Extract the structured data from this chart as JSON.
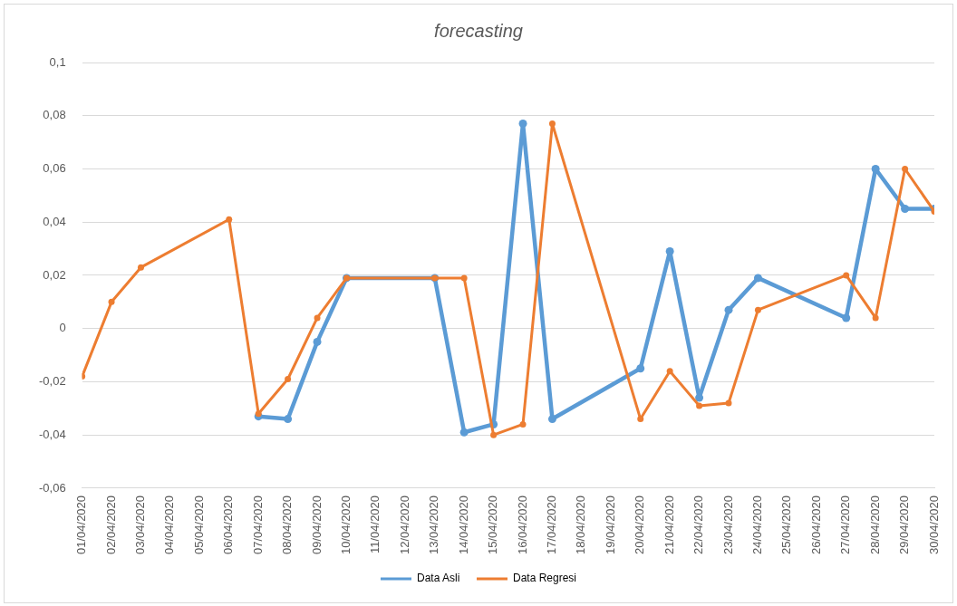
{
  "chart_data": {
    "type": "line",
    "title": "forecasting",
    "xlim": [
      "2020-04-01",
      "2020-04-30"
    ],
    "xticks": [
      {
        "value": "2020-04-01",
        "label": "01/04/2020"
      },
      {
        "value": "2020-04-02",
        "label": "02/04/2020"
      },
      {
        "value": "2020-04-03",
        "label": "03/04/2020"
      },
      {
        "value": "2020-04-04",
        "label": "04/04/2020"
      },
      {
        "value": "2020-04-05",
        "label": "05/04/2020"
      },
      {
        "value": "2020-04-06",
        "label": "06/04/2020"
      },
      {
        "value": "2020-04-07",
        "label": "07/04/2020"
      },
      {
        "value": "2020-04-08",
        "label": "08/04/2020"
      },
      {
        "value": "2020-04-09",
        "label": "09/04/2020"
      },
      {
        "value": "2020-04-10",
        "label": "10/04/2020"
      },
      {
        "value": "2020-04-11",
        "label": "11/04/2020"
      },
      {
        "value": "2020-04-12",
        "label": "12/04/2020"
      },
      {
        "value": "2020-04-13",
        "label": "13/04/2020"
      },
      {
        "value": "2020-04-14",
        "label": "14/04/2020"
      },
      {
        "value": "2020-04-15",
        "label": "15/04/2020"
      },
      {
        "value": "2020-04-16",
        "label": "16/04/2020"
      },
      {
        "value": "2020-04-17",
        "label": "17/04/2020"
      },
      {
        "value": "2020-04-18",
        "label": "18/04/2020"
      },
      {
        "value": "2020-04-19",
        "label": "19/04/2020"
      },
      {
        "value": "2020-04-20",
        "label": "20/04/2020"
      },
      {
        "value": "2020-04-21",
        "label": "21/04/2020"
      },
      {
        "value": "2020-04-22",
        "label": "22/04/2020"
      },
      {
        "value": "2020-04-23",
        "label": "23/04/2020"
      },
      {
        "value": "2020-04-24",
        "label": "24/04/2020"
      },
      {
        "value": "2020-04-25",
        "label": "25/04/2020"
      },
      {
        "value": "2020-04-26",
        "label": "26/04/2020"
      },
      {
        "value": "2020-04-27",
        "label": "27/04/2020"
      },
      {
        "value": "2020-04-28",
        "label": "28/04/2020"
      },
      {
        "value": "2020-04-29",
        "label": "29/04/2020"
      },
      {
        "value": "2020-04-30",
        "label": "30/04/2020"
      }
    ],
    "x": [
      "2020-04-01",
      "2020-04-02",
      "2020-04-03",
      "2020-04-06",
      "2020-04-07",
      "2020-04-08",
      "2020-04-09",
      "2020-04-10",
      "2020-04-13",
      "2020-04-14",
      "2020-04-15",
      "2020-04-16",
      "2020-04-17",
      "2020-04-20",
      "2020-04-21",
      "2020-04-22",
      "2020-04-23",
      "2020-04-24",
      "2020-04-27",
      "2020-04-28",
      "2020-04-29",
      "2020-04-30"
    ],
    "series": [
      {
        "name": "Data Asli",
        "color": "#5b9bd5",
        "values": [
          null,
          null,
          null,
          null,
          -0.033,
          -0.034,
          -0.005,
          0.019,
          0.019,
          -0.039,
          -0.036,
          0.077,
          -0.034,
          -0.015,
          0.029,
          -0.026,
          0.007,
          0.019,
          0.004,
          0.06,
          0.045,
          0.045
        ]
      },
      {
        "name": "Data Regresi",
        "color": "#ed7d31",
        "values": [
          -0.018,
          0.01,
          0.023,
          0.041,
          -0.032,
          -0.019,
          0.004,
          0.019,
          0.019,
          0.019,
          -0.04,
          -0.036,
          0.077,
          -0.034,
          -0.016,
          -0.029,
          -0.028,
          0.007,
          0.02,
          0.004,
          0.06,
          0.044
        ]
      }
    ],
    "ylim": [
      -0.06,
      0.1
    ],
    "yticks": [
      {
        "value": -0.06,
        "label": "-0,06"
      },
      {
        "value": -0.04,
        "label": "-0,04"
      },
      {
        "value": -0.02,
        "label": "-0,02"
      },
      {
        "value": 0,
        "label": "0"
      },
      {
        "value": 0.02,
        "label": "0,02"
      },
      {
        "value": 0.04,
        "label": "0,04"
      },
      {
        "value": 0.06,
        "label": "0,06"
      },
      {
        "value": 0.08,
        "label": "0,08"
      },
      {
        "value": 0.1,
        "label": "0,1"
      }
    ],
    "grid": "y",
    "legend": "bottom",
    "marker": "circle",
    "line_style": "solid"
  }
}
